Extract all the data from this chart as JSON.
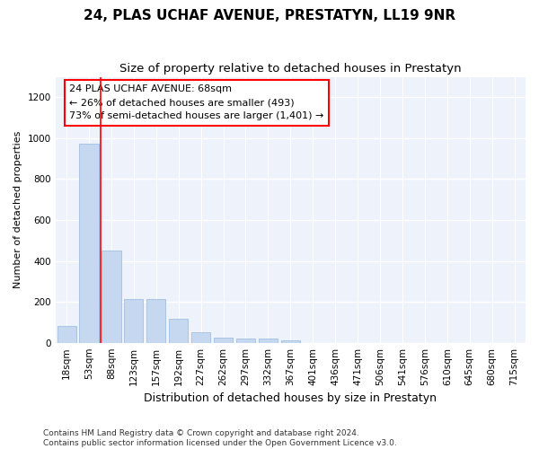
{
  "title": "24, PLAS UCHAF AVENUE, PRESTATYN, LL19 9NR",
  "subtitle": "Size of property relative to detached houses in Prestatyn",
  "xlabel": "Distribution of detached houses by size in Prestatyn",
  "ylabel": "Number of detached properties",
  "bar_color": "#c5d8f0",
  "bar_edge_color": "#a0c0e0",
  "background_color": "#eef2fa",
  "grid_color": "#ffffff",
  "categories": [
    "18sqm",
    "53sqm",
    "88sqm",
    "123sqm",
    "157sqm",
    "192sqm",
    "227sqm",
    "262sqm",
    "297sqm",
    "332sqm",
    "367sqm",
    "401sqm",
    "436sqm",
    "471sqm",
    "506sqm",
    "541sqm",
    "576sqm",
    "610sqm",
    "645sqm",
    "680sqm",
    "715sqm"
  ],
  "values": [
    82,
    975,
    450,
    215,
    215,
    115,
    50,
    25,
    22,
    22,
    13,
    0,
    0,
    0,
    0,
    0,
    0,
    0,
    0,
    0,
    0
  ],
  "ylim": [
    0,
    1300
  ],
  "yticks": [
    0,
    200,
    400,
    600,
    800,
    1000,
    1200
  ],
  "vline_x": 1.5,
  "annotation_text": "24 PLAS UCHAF AVENUE: 68sqm\n← 26% of detached houses are smaller (493)\n73% of semi-detached houses are larger (1,401) →",
  "footer": "Contains HM Land Registry data © Crown copyright and database right 2024.\nContains public sector information licensed under the Open Government Licence v3.0.",
  "title_fontsize": 11,
  "subtitle_fontsize": 9.5,
  "xlabel_fontsize": 9,
  "ylabel_fontsize": 8,
  "annotation_fontsize": 8,
  "tick_fontsize": 7.5,
  "footer_fontsize": 6.5
}
